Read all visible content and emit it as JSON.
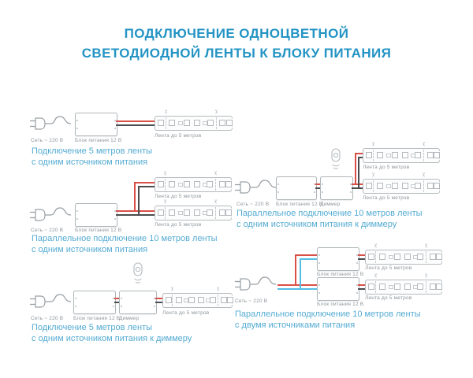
{
  "title": {
    "line1": "ПОДКЛЮЧЕНИЕ ОДНОЦВЕТНОЙ",
    "line2": "СВЕТОДИОДНОЙ ЛЕНТЫ К БЛОКУ ПИТАНИЯ"
  },
  "labels": {
    "mains": "Сеть ~ 220 В",
    "psu": "Блок питания 12 В",
    "dimmer": "Диммер",
    "strip": "Лента до 5 метров"
  },
  "diagrams": [
    {
      "caption1": "Подключение 5 метров ленты",
      "caption2": "с одним источником питания"
    },
    {
      "caption1": "Параллельное подключение 10 метров ленты",
      "caption2": "с одним источником питания"
    },
    {
      "caption1": "Подключение 5 метров ленты",
      "caption2": "с одним источником питания к диммеру"
    },
    {
      "caption1": "Параллельное подключение 10 метров ленты",
      "caption2": "с одним источником питания к диммеру"
    },
    {
      "caption1": "Параллельное подключение 10 метров ленты",
      "caption2": "с двумя источниками питания"
    }
  ],
  "icons": {
    "plug": "power-plug-icon",
    "remote": "remote-control-icon",
    "scissors": "cut-mark-icon"
  },
  "colors": {
    "title_blue": "#2394c4",
    "caption_blue": "#54abd2",
    "label_gray": "#8f969b",
    "outline_gray": "#b4babe",
    "wire_red": "#d95048",
    "wire_black": "#4a4c4e",
    "wire_blue": "#54bde4",
    "background": "#ffffff"
  }
}
